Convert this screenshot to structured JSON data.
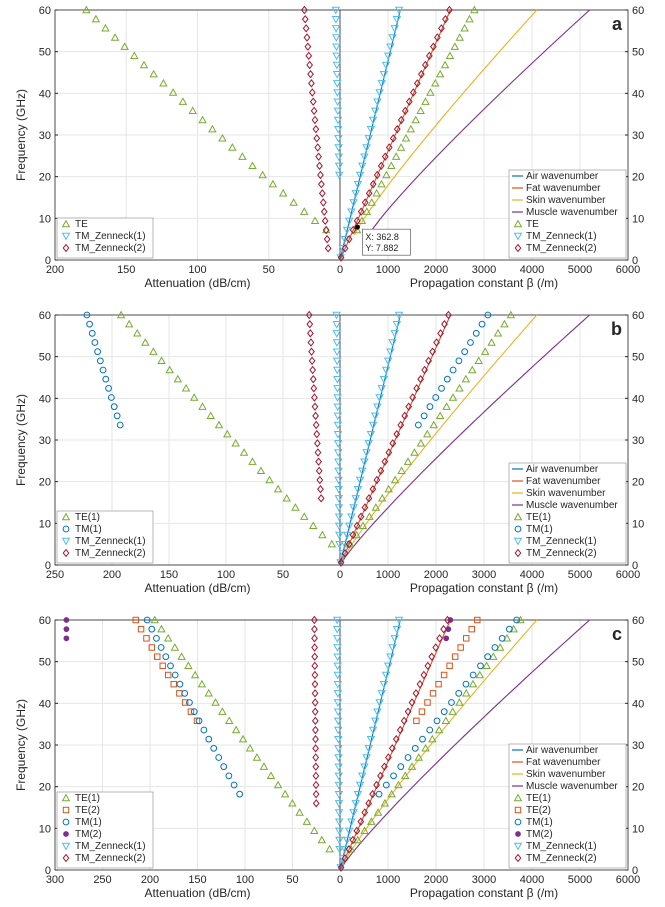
{
  "chart_data": [
    {
      "type": "scatter",
      "panel_label": "a",
      "ylabel": "Frequency (GHz)",
      "left_xlabel": "Attenuation (dB/cm)",
      "right_xlabel": "Propagation constant β (/m)",
      "left_xlim": [
        200,
        0
      ],
      "right_xlim": [
        0,
        6000
      ],
      "ylim": [
        0,
        60
      ],
      "left_xticks": [
        200,
        150,
        100,
        50,
        0
      ],
      "right_xticks": [
        1000,
        2000,
        3000,
        4000,
        5000,
        6000
      ],
      "yticks": [
        0,
        10,
        20,
        30,
        40,
        50,
        60
      ],
      "grid": true,
      "left_legend": [
        "TE",
        "TM_Zenneck(1)",
        "TM_Zenneck(2)"
      ],
      "right_legend": [
        "Air wavenumber",
        "Fat wavenumber",
        "Skin wavenumber",
        "Muscle wavenumber",
        "TE",
        "TM_Zenneck(1)",
        "TM_Zenneck(2)"
      ],
      "annotation": {
        "x_text": "X: 362.8",
        "y_text": "Y: 7.882",
        "x": 362.8,
        "y": 7.882
      },
      "wavenumbers": {
        "air": [
          0,
          1257
        ],
        "fat": [
          0,
          2300
        ],
        "skin": [
          300,
          4100,
          6,
          60
        ],
        "muscle": [
          600,
          5200,
          6,
          60
        ]
      },
      "series": [
        {
          "name": "TE",
          "side": "left",
          "marker": "triangle-up",
          "color": "#77ac30",
          "a60": 178,
          "amin": 5,
          "y0": 6
        },
        {
          "name": "TM_Zenneck(1)",
          "side": "left",
          "marker": "triangle-down",
          "color": "#4dbeee",
          "a60": 3,
          "amin": 0.5,
          "y0": 20
        },
        {
          "name": "TM_Zenneck(2)",
          "side": "left",
          "marker": "diamond",
          "color": "#a2142f",
          "a60": 25,
          "amin": 8,
          "y0": 2
        },
        {
          "name": "TE",
          "side": "right",
          "marker": "triangle-up",
          "color": "#77ac30",
          "b60": 2800,
          "bmin": 300,
          "y0": 6
        },
        {
          "name": "TM_Zenneck(1)",
          "side": "right",
          "marker": "triangle-down",
          "color": "#4dbeee",
          "b60": 1230,
          "bmin": 0,
          "y0": 0
        },
        {
          "name": "TM_Zenneck(2)",
          "side": "right",
          "marker": "diamond",
          "color": "#a2142f",
          "b60": 2280,
          "bmin": 0,
          "y0": 0
        }
      ]
    },
    {
      "type": "scatter",
      "panel_label": "b",
      "ylabel": "Frequency (GHz)",
      "left_xlabel": "Attenuation (dB/cm)",
      "right_xlabel": "Propagation constant β (/m)",
      "left_xlim": [
        250,
        0
      ],
      "right_xlim": [
        0,
        6000
      ],
      "ylim": [
        0,
        60
      ],
      "left_xticks": [
        250,
        200,
        150,
        100,
        50,
        0
      ],
      "right_xticks": [
        1000,
        2000,
        3000,
        4000,
        5000,
        6000
      ],
      "yticks": [
        0,
        10,
        20,
        30,
        40,
        50,
        60
      ],
      "grid": true,
      "left_legend": [
        "TE(1)",
        "TM(1)",
        "TM_Zenneck(1)",
        "TM_Zenneck(2)"
      ],
      "right_legend": [
        "Air wavenumber",
        "Fat wavenumber",
        "Skin wavenumber",
        "Muscle wavenumber",
        "TE(1)",
        "TM(1)",
        "TM_Zenneck(1)",
        "TM_Zenneck(2)"
      ],
      "wavenumbers": {
        "air": [
          0,
          1257
        ],
        "fat": [
          0,
          2300
        ],
        "skin": [
          0,
          4100,
          0,
          60
        ],
        "muscle": [
          0,
          5200,
          0,
          60
        ]
      },
      "series": [
        {
          "name": "TE(1)",
          "side": "left",
          "marker": "triangle-up",
          "color": "#77ac30",
          "a60": 192,
          "amin": 3,
          "y0": 4
        },
        {
          "name": "TM(1)",
          "side": "left",
          "marker": "circle",
          "color": "#0072bd",
          "a60": 222,
          "amin": 192,
          "y0": 33
        },
        {
          "name": "TM_Zenneck(1)",
          "side": "left",
          "marker": "triangle-down",
          "color": "#4dbeee",
          "a60": 3,
          "amin": 0.5,
          "y0": 5
        },
        {
          "name": "TM_Zenneck(2)",
          "side": "left",
          "marker": "diamond",
          "color": "#a2142f",
          "a60": 27,
          "amin": 16,
          "y0": 14
        },
        {
          "name": "TE(1)",
          "side": "right",
          "marker": "triangle-up",
          "color": "#77ac30",
          "b60": 3560,
          "bmin": 150,
          "y0": 4
        },
        {
          "name": "TM(1)",
          "side": "right",
          "marker": "circle",
          "color": "#0072bd",
          "b60": 3080,
          "bmin": 1600,
          "y0": 33
        },
        {
          "name": "TM_Zenneck(1)",
          "side": "right",
          "marker": "triangle-down",
          "color": "#4dbeee",
          "b60": 1230,
          "bmin": 0,
          "y0": 0
        },
        {
          "name": "TM_Zenneck(2)",
          "side": "right",
          "marker": "diamond",
          "color": "#a2142f",
          "b60": 2260,
          "bmin": 0,
          "y0": 0
        }
      ]
    },
    {
      "type": "scatter",
      "panel_label": "c",
      "ylabel": "Frequency (GHz)",
      "left_xlabel": "Attenuation (dB/cm)",
      "right_xlabel": "Propagation constant β (/m)",
      "left_xlim": [
        300,
        0
      ],
      "right_xlim": [
        0,
        6000
      ],
      "ylim": [
        0,
        60
      ],
      "left_xticks": [
        300,
        250,
        200,
        150,
        100,
        50,
        0
      ],
      "right_xticks": [
        1000,
        2000,
        3000,
        4000,
        5000,
        6000
      ],
      "yticks": [
        0,
        10,
        20,
        30,
        40,
        50,
        60
      ],
      "grid": true,
      "left_legend": [
        "TE(1)",
        "TE(2)",
        "TM(1)",
        "TM(2)",
        "TM_Zenneck(1)",
        "TM_Zenneck(2)"
      ],
      "right_legend": [
        "Air wavenumber",
        "Fat wavenumber",
        "Skin wavenumber",
        "Muscle wavenumber",
        "TE(1)",
        "TE(2)",
        "TM(1)",
        "TM(2)",
        "TM_Zenneck(1)",
        "TM_Zenneck(2)"
      ],
      "wavenumbers": {
        "air": [
          0,
          1257
        ],
        "fat": [
          0,
          2300
        ],
        "skin": [
          0,
          4100,
          0,
          60
        ],
        "muscle": [
          0,
          5200,
          0,
          60
        ]
      },
      "series": [
        {
          "name": "TE(1)",
          "side": "left",
          "marker": "triangle-up",
          "color": "#77ac30",
          "a60": 195,
          "amin": 3,
          "y0": 3
        },
        {
          "name": "TE(2)",
          "side": "left",
          "marker": "square",
          "color": "#d95319",
          "a60": 215,
          "amin": 148,
          "y0": 35
        },
        {
          "name": "TM(1)",
          "side": "left",
          "marker": "circle",
          "color": "#0072bd",
          "a60": 203,
          "amin": 105,
          "y0": 18
        },
        {
          "name": "TM(2)",
          "side": "left",
          "marker": "star",
          "color": "#7e2f8e",
          "a60": 288,
          "amin": 288,
          "y0": 54
        },
        {
          "name": "TM_Zenneck(1)",
          "side": "left",
          "marker": "triangle-down",
          "color": "#4dbeee",
          "a60": 3,
          "amin": 0.5,
          "y0": 5
        },
        {
          "name": "TM_Zenneck(2)",
          "side": "left",
          "marker": "diamond",
          "color": "#a2142f",
          "a60": 27,
          "amin": 25,
          "y0": 15
        },
        {
          "name": "TE(1)",
          "side": "right",
          "marker": "triangle-up",
          "color": "#77ac30",
          "b60": 3760,
          "bmin": 100,
          "y0": 3
        },
        {
          "name": "TE(2)",
          "side": "right",
          "marker": "square",
          "color": "#d95319",
          "b60": 2860,
          "bmin": 1550,
          "y0": 35
        },
        {
          "name": "TM(1)",
          "side": "right",
          "marker": "circle",
          "color": "#0072bd",
          "b60": 3680,
          "bmin": 800,
          "y0": 18
        },
        {
          "name": "TM(2)",
          "side": "right",
          "marker": "star",
          "color": "#7e2f8e",
          "b60": 2300,
          "bmin": 2180,
          "y0": 54
        },
        {
          "name": "TM_Zenneck(1)",
          "side": "right",
          "marker": "triangle-down",
          "color": "#4dbeee",
          "b60": 1230,
          "bmin": 0,
          "y0": 0
        },
        {
          "name": "TM_Zenneck(2)",
          "side": "right",
          "marker": "diamond",
          "color": "#a2142f",
          "b60": 2240,
          "bmin": 0,
          "y0": 0
        }
      ]
    }
  ],
  "colors": {
    "air": "#0072bd",
    "fat": "#d95319",
    "skin": "#edb120",
    "muscle": "#7e2f8e",
    "grid": "#e6e6e6",
    "axis": "#262626"
  }
}
